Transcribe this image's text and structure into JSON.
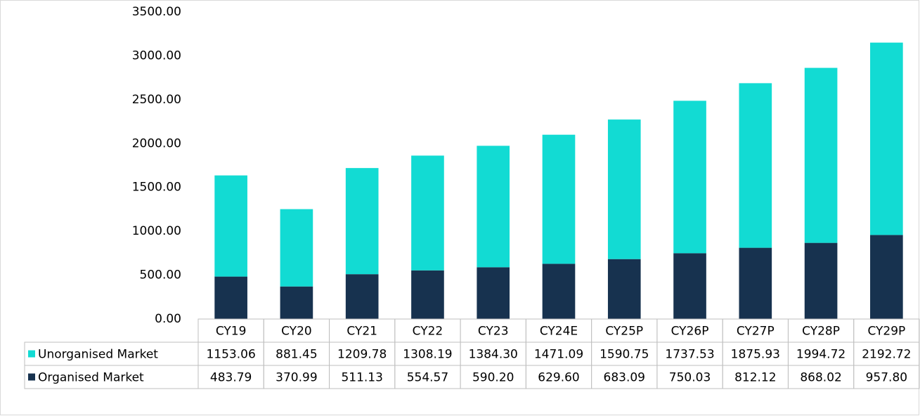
{
  "chart_data": {
    "type": "stacked_bar",
    "categories": [
      "CY19",
      "CY20",
      "CY21",
      "CY22",
      "CY23",
      "CY24E",
      "CY25P",
      "CY26P",
      "CY27P",
      "CY28P",
      "CY29P"
    ],
    "series": [
      {
        "name": "Unorganised Market",
        "color": "#12dbd3",
        "values": [
          1153.06,
          881.45,
          1209.78,
          1308.19,
          1384.3,
          1471.09,
          1590.75,
          1737.53,
          1875.93,
          1994.72,
          2192.72
        ],
        "value_labels": [
          "1153.06",
          "881.45",
          "1209.78",
          "1308.19",
          "1384.30",
          "1471.09",
          "1590.75",
          "1737.53",
          "1875.93",
          "1994.72",
          "2192.72"
        ]
      },
      {
        "name": "Organised Market",
        "color": "#17324f",
        "values": [
          483.79,
          370.99,
          511.13,
          554.57,
          590.2,
          629.6,
          683.09,
          750.03,
          812.12,
          868.02,
          957.8
        ],
        "value_labels": [
          "483.79",
          "370.99",
          "511.13",
          "554.57",
          "590.20",
          "629.60",
          "683.09",
          "750.03",
          "812.12",
          "868.02",
          "957.80"
        ]
      }
    ],
    "ylim": [
      0,
      3500
    ],
    "yticks": [
      {
        "value": 0,
        "label": "0.00"
      },
      {
        "value": 500,
        "label": "500.00"
      },
      {
        "value": 1000,
        "label": "1000.00"
      },
      {
        "value": 1500,
        "label": "1500.00"
      },
      {
        "value": 2000,
        "label": "2000.00"
      },
      {
        "value": 2500,
        "label": "2500.00"
      },
      {
        "value": 3000,
        "label": "3000.00"
      },
      {
        "value": 3500,
        "label": "3500.00"
      }
    ]
  }
}
